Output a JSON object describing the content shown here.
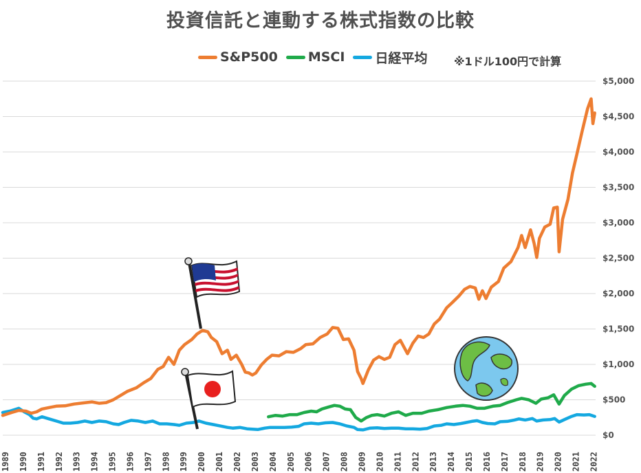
{
  "colors": {
    "sp500": "#ED7D31",
    "msci": "#1FAA4A",
    "nikkei": "#14A8E0",
    "grid": "#D9D9D9",
    "text": "#404040"
  },
  "chart_data": {
    "type": "line",
    "title": "投資信託と連動する株式指数の比較",
    "note": "※1ドル100円で計算",
    "legend_position": "top",
    "grid": true,
    "ylim": [
      0,
      5000
    ],
    "y_ticks": [
      "$0",
      "$500",
      "$1,000",
      "$1,500",
      "$2,000",
      "$2,500",
      "$3,000",
      "$3,500",
      "$4,000",
      "$4,500",
      "$5,000"
    ],
    "x_ticks": [
      "1989",
      "1990",
      "1991",
      "1992",
      "1993",
      "1994",
      "1995",
      "1996",
      "1997",
      "1998",
      "1999",
      "2000",
      "2001",
      "2002",
      "2003",
      "2004",
      "2005",
      "2006",
      "2007",
      "2008",
      "2009",
      "2010",
      "2011",
      "2012",
      "2013",
      "2014",
      "2015",
      "2016",
      "2017",
      "2018",
      "2019",
      "2020",
      "2021",
      "2022"
    ],
    "series": [
      {
        "name": "S&P500",
        "points": [
          [
            1989.0,
            280
          ],
          [
            1989.5,
            320
          ],
          [
            1989.9,
            350
          ],
          [
            1990.3,
            340
          ],
          [
            1990.6,
            310
          ],
          [
            1990.9,
            330
          ],
          [
            1991.2,
            370
          ],
          [
            1991.6,
            390
          ],
          [
            1992.0,
            410
          ],
          [
            1992.5,
            415
          ],
          [
            1993.0,
            440
          ],
          [
            1993.5,
            455
          ],
          [
            1994.0,
            470
          ],
          [
            1994.4,
            450
          ],
          [
            1994.8,
            460
          ],
          [
            1995.2,
            500
          ],
          [
            1995.6,
            560
          ],
          [
            1996.0,
            620
          ],
          [
            1996.5,
            670
          ],
          [
            1996.9,
            740
          ],
          [
            1997.3,
            800
          ],
          [
            1997.7,
            930
          ],
          [
            1998.0,
            970
          ],
          [
            1998.3,
            1100
          ],
          [
            1998.6,
            1000
          ],
          [
            1998.9,
            1200
          ],
          [
            1999.2,
            1280
          ],
          [
            1999.6,
            1350
          ],
          [
            1999.9,
            1430
          ],
          [
            2000.2,
            1480
          ],
          [
            2000.5,
            1460
          ],
          [
            2000.7,
            1380
          ],
          [
            2001.0,
            1320
          ],
          [
            2001.3,
            1150
          ],
          [
            2001.6,
            1200
          ],
          [
            2001.8,
            1070
          ],
          [
            2002.1,
            1130
          ],
          [
            2002.4,
            1000
          ],
          [
            2002.6,
            890
          ],
          [
            2002.8,
            880
          ],
          [
            2003.0,
            850
          ],
          [
            2003.2,
            880
          ],
          [
            2003.5,
            990
          ],
          [
            2003.8,
            1070
          ],
          [
            2004.1,
            1130
          ],
          [
            2004.5,
            1120
          ],
          [
            2004.9,
            1180
          ],
          [
            2005.3,
            1170
          ],
          [
            2005.7,
            1220
          ],
          [
            2006.0,
            1280
          ],
          [
            2006.4,
            1290
          ],
          [
            2006.8,
            1380
          ],
          [
            2007.2,
            1430
          ],
          [
            2007.5,
            1520
          ],
          [
            2007.8,
            1510
          ],
          [
            2008.1,
            1350
          ],
          [
            2008.4,
            1360
          ],
          [
            2008.7,
            1200
          ],
          [
            2008.9,
            900
          ],
          [
            2009.1,
            800
          ],
          [
            2009.2,
            730
          ],
          [
            2009.5,
            920
          ],
          [
            2009.8,
            1060
          ],
          [
            2010.1,
            1110
          ],
          [
            2010.4,
            1070
          ],
          [
            2010.7,
            1100
          ],
          [
            2011.0,
            1280
          ],
          [
            2011.3,
            1340
          ],
          [
            2011.7,
            1150
          ],
          [
            2012.0,
            1300
          ],
          [
            2012.3,
            1400
          ],
          [
            2012.6,
            1380
          ],
          [
            2012.9,
            1430
          ],
          [
            2013.2,
            1570
          ],
          [
            2013.5,
            1640
          ],
          [
            2013.9,
            1800
          ],
          [
            2014.2,
            1870
          ],
          [
            2014.6,
            1970
          ],
          [
            2014.9,
            2060
          ],
          [
            2015.2,
            2100
          ],
          [
            2015.5,
            2080
          ],
          [
            2015.7,
            1920
          ],
          [
            2015.9,
            2040
          ],
          [
            2016.1,
            1930
          ],
          [
            2016.4,
            2090
          ],
          [
            2016.8,
            2170
          ],
          [
            2017.1,
            2360
          ],
          [
            2017.5,
            2450
          ],
          [
            2017.9,
            2650
          ],
          [
            2018.1,
            2820
          ],
          [
            2018.3,
            2650
          ],
          [
            2018.6,
            2900
          ],
          [
            2018.8,
            2710
          ],
          [
            2018.95,
            2510
          ],
          [
            2019.1,
            2780
          ],
          [
            2019.4,
            2940
          ],
          [
            2019.7,
            2980
          ],
          [
            2019.9,
            3210
          ],
          [
            2020.1,
            3220
          ],
          [
            2020.2,
            2590
          ],
          [
            2020.4,
            3050
          ],
          [
            2020.7,
            3330
          ],
          [
            2020.95,
            3700
          ],
          [
            2021.2,
            3970
          ],
          [
            2021.5,
            4300
          ],
          [
            2021.8,
            4610
          ],
          [
            2022.0,
            4750
          ],
          [
            2022.1,
            4400
          ],
          [
            2022.2,
            4550
          ]
        ]
      },
      {
        "name": "MSCI",
        "points": [
          [
            2003.9,
            260
          ],
          [
            2004.3,
            280
          ],
          [
            2004.7,
            270
          ],
          [
            2005.1,
            290
          ],
          [
            2005.5,
            290
          ],
          [
            2005.9,
            320
          ],
          [
            2006.3,
            340
          ],
          [
            2006.6,
            330
          ],
          [
            2006.9,
            370
          ],
          [
            2007.3,
            400
          ],
          [
            2007.6,
            420
          ],
          [
            2007.9,
            410
          ],
          [
            2008.2,
            370
          ],
          [
            2008.5,
            360
          ],
          [
            2008.8,
            250
          ],
          [
            2009.1,
            200
          ],
          [
            2009.4,
            250
          ],
          [
            2009.7,
            280
          ],
          [
            2010.0,
            290
          ],
          [
            2010.4,
            270
          ],
          [
            2010.8,
            310
          ],
          [
            2011.2,
            330
          ],
          [
            2011.6,
            280
          ],
          [
            2012.0,
            310
          ],
          [
            2012.5,
            310
          ],
          [
            2012.9,
            340
          ],
          [
            2013.4,
            360
          ],
          [
            2013.9,
            390
          ],
          [
            2014.4,
            410
          ],
          [
            2014.8,
            420
          ],
          [
            2015.2,
            410
          ],
          [
            2015.6,
            380
          ],
          [
            2016.0,
            380
          ],
          [
            2016.5,
            410
          ],
          [
            2016.9,
            420
          ],
          [
            2017.3,
            460
          ],
          [
            2017.8,
            500
          ],
          [
            2018.1,
            520
          ],
          [
            2018.5,
            500
          ],
          [
            2018.9,
            450
          ],
          [
            2019.2,
            510
          ],
          [
            2019.6,
            530
          ],
          [
            2019.9,
            570
          ],
          [
            2020.2,
            440
          ],
          [
            2020.5,
            560
          ],
          [
            2020.9,
            650
          ],
          [
            2021.3,
            700
          ],
          [
            2021.7,
            720
          ],
          [
            2022.0,
            730
          ],
          [
            2022.2,
            690
          ]
        ]
      },
      {
        "name": "日経平均",
        "points": [
          [
            1989.0,
            320
          ],
          [
            1989.4,
            340
          ],
          [
            1989.9,
            380
          ],
          [
            1990.2,
            330
          ],
          [
            1990.5,
            290
          ],
          [
            1990.7,
            240
          ],
          [
            1990.9,
            230
          ],
          [
            1991.2,
            260
          ],
          [
            1991.6,
            230
          ],
          [
            1992.0,
            200
          ],
          [
            1992.4,
            170
          ],
          [
            1992.8,
            170
          ],
          [
            1993.2,
            180
          ],
          [
            1993.6,
            200
          ],
          [
            1994.0,
            180
          ],
          [
            1994.4,
            200
          ],
          [
            1994.8,
            190
          ],
          [
            1995.2,
            160
          ],
          [
            1995.5,
            150
          ],
          [
            1995.8,
            180
          ],
          [
            1996.2,
            210
          ],
          [
            1996.6,
            200
          ],
          [
            1997.0,
            180
          ],
          [
            1997.4,
            200
          ],
          [
            1997.8,
            160
          ],
          [
            1998.2,
            160
          ],
          [
            1998.6,
            150
          ],
          [
            1998.9,
            140
          ],
          [
            1999.3,
            170
          ],
          [
            1999.7,
            180
          ],
          [
            2000.0,
            200
          ],
          [
            2000.4,
            170
          ],
          [
            2000.8,
            150
          ],
          [
            2001.2,
            130
          ],
          [
            2001.6,
            110
          ],
          [
            2001.9,
            100
          ],
          [
            2002.3,
            110
          ],
          [
            2002.7,
            90
          ],
          [
            2003.0,
            85
          ],
          [
            2003.3,
            80
          ],
          [
            2003.7,
            100
          ],
          [
            2004.0,
            110
          ],
          [
            2004.4,
            110
          ],
          [
            2004.8,
            110
          ],
          [
            2005.2,
            115
          ],
          [
            2005.6,
            125
          ],
          [
            2005.9,
            160
          ],
          [
            2006.3,
            170
          ],
          [
            2006.7,
            160
          ],
          [
            2007.1,
            175
          ],
          [
            2007.5,
            180
          ],
          [
            2007.9,
            160
          ],
          [
            2008.3,
            130
          ],
          [
            2008.7,
            110
          ],
          [
            2008.9,
            80
          ],
          [
            2009.2,
            75
          ],
          [
            2009.6,
            100
          ],
          [
            2010.0,
            105
          ],
          [
            2010.4,
            95
          ],
          [
            2010.8,
            100
          ],
          [
            2011.2,
            100
          ],
          [
            2011.6,
            90
          ],
          [
            2012.0,
            90
          ],
          [
            2012.4,
            85
          ],
          [
            2012.8,
            95
          ],
          [
            2013.2,
            130
          ],
          [
            2013.6,
            140
          ],
          [
            2013.9,
            160
          ],
          [
            2014.3,
            150
          ],
          [
            2014.7,
            165
          ],
          [
            2014.9,
            175
          ],
          [
            2015.3,
            195
          ],
          [
            2015.6,
            205
          ],
          [
            2015.9,
            180
          ],
          [
            2016.2,
            165
          ],
          [
            2016.6,
            160
          ],
          [
            2016.9,
            190
          ],
          [
            2017.3,
            195
          ],
          [
            2017.7,
            215
          ],
          [
            2017.95,
            230
          ],
          [
            2018.3,
            215
          ],
          [
            2018.7,
            235
          ],
          [
            2018.95,
            200
          ],
          [
            2019.3,
            215
          ],
          [
            2019.7,
            220
          ],
          [
            2019.95,
            235
          ],
          [
            2020.2,
            185
          ],
          [
            2020.5,
            220
          ],
          [
            2020.9,
            265
          ],
          [
            2021.2,
            290
          ],
          [
            2021.6,
            285
          ],
          [
            2021.9,
            290
          ],
          [
            2022.2,
            265
          ]
        ]
      }
    ]
  }
}
